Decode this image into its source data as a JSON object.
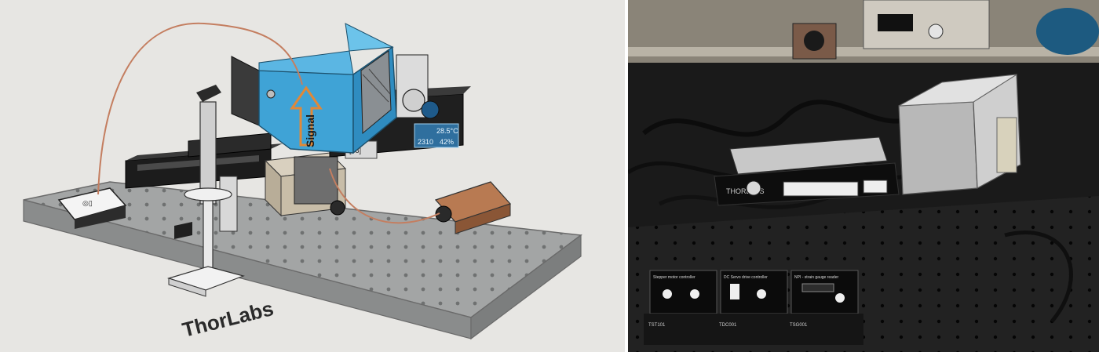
{
  "left_panel": {
    "table_brand": "ThorLabs",
    "arrow_label": "Signal",
    "display_temp": "28.5°C",
    "display_humidity": "42%",
    "display_reading": "2310",
    "small_display": "[88]"
  },
  "right_panel": {
    "stage_label": "THORLABS",
    "driver_labels": [
      "Stepper motor controller",
      "DC Servo drive controller",
      "NPI - strain gauge reader"
    ],
    "driver_models": [
      "TST101",
      "TDC001",
      "TSG001"
    ]
  },
  "colors": {
    "enclosure_blue": "#3fa3d6",
    "table_grey": "#9a9c9c",
    "fiber_orange": "#c47e60",
    "arrow_orange": "#e08838"
  }
}
